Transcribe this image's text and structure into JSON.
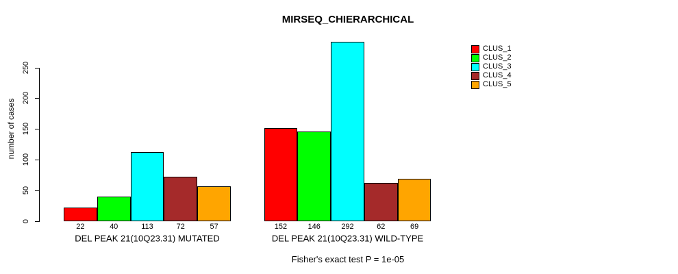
{
  "chart_data": {
    "type": "bar",
    "title": "MIRSEQ_CHIERARCHICAL",
    "xlabel": "",
    "ylabel": "number of cases",
    "yticks": [
      0,
      50,
      100,
      150,
      200,
      250
    ],
    "ylim": [
      0,
      292
    ],
    "grid": false,
    "legend_position": "right",
    "show_bar_values": true,
    "categories": [
      "CLUS_1",
      "CLUS_2",
      "CLUS_3",
      "CLUS_4",
      "CLUS_5"
    ],
    "series_colors": [
      "#FF0000",
      "#00FF00",
      "#00FFFF",
      "#A52A2A",
      "#FFA500"
    ],
    "groups": [
      {
        "label": "DEL PEAK 21(10Q23.31) MUTATED",
        "values": [
          22,
          40,
          113,
          72,
          57
        ]
      },
      {
        "label": "DEL PEAK 21(10Q23.31) WILD-TYPE",
        "values": [
          152,
          146,
          292,
          62,
          69
        ]
      }
    ],
    "annotation": "Fisher's exact test P = 1e-05"
  },
  "colors": {
    "background": "#FFFFFF",
    "axis": "#000000",
    "text": "#000000",
    "bar_border": "#000000"
  }
}
